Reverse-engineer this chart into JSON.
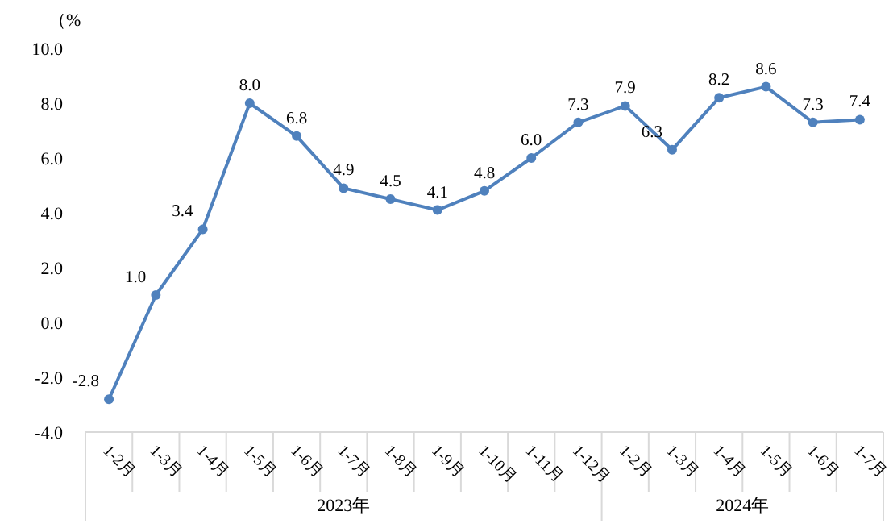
{
  "chart_data": {
    "type": "line",
    "ylabel": "（%",
    "categories": [
      "1-2月",
      "1-3月",
      "1-4月",
      "1-5月",
      "1-6月",
      "1-7月",
      "1-8月",
      "1-9月",
      "1-10月",
      "1-11月",
      "1-12月",
      "1-2月",
      "1-3月",
      "1-4月",
      "1-5月",
      "1-6月",
      "1-7月"
    ],
    "series": [
      {
        "color": "#4f81bd",
        "values": [
          -2.8,
          1.0,
          3.4,
          8.0,
          6.8,
          4.9,
          4.5,
          4.1,
          4.8,
          6.0,
          7.3,
          7.9,
          6.3,
          8.2,
          8.6,
          7.3,
          7.4
        ],
        "value_labels": [
          "-2.8",
          "1.0",
          "3.4",
          "8.0",
          "6.8",
          "4.9",
          "4.5",
          "4.1",
          "4.8",
          "6.0",
          "7.3",
          "7.9",
          "6.3",
          "8.2",
          "8.6",
          "7.3",
          "7.4"
        ]
      }
    ],
    "ylim": [
      -4.0,
      10.0
    ],
    "yticks": [
      {
        "value": -4,
        "label": "-4.0"
      },
      {
        "value": -2,
        "label": "-2.0"
      },
      {
        "value": 0,
        "label": "0.0"
      },
      {
        "value": 2,
        "label": "2.0"
      },
      {
        "value": 4,
        "label": "4.0"
      },
      {
        "value": 6,
        "label": "6.0"
      },
      {
        "value": 8,
        "label": "8.0"
      },
      {
        "value": 10,
        "label": "10.0"
      }
    ],
    "marker": "circle",
    "grid": false,
    "annotations": [
      "2023年",
      "2024年"
    ]
  }
}
